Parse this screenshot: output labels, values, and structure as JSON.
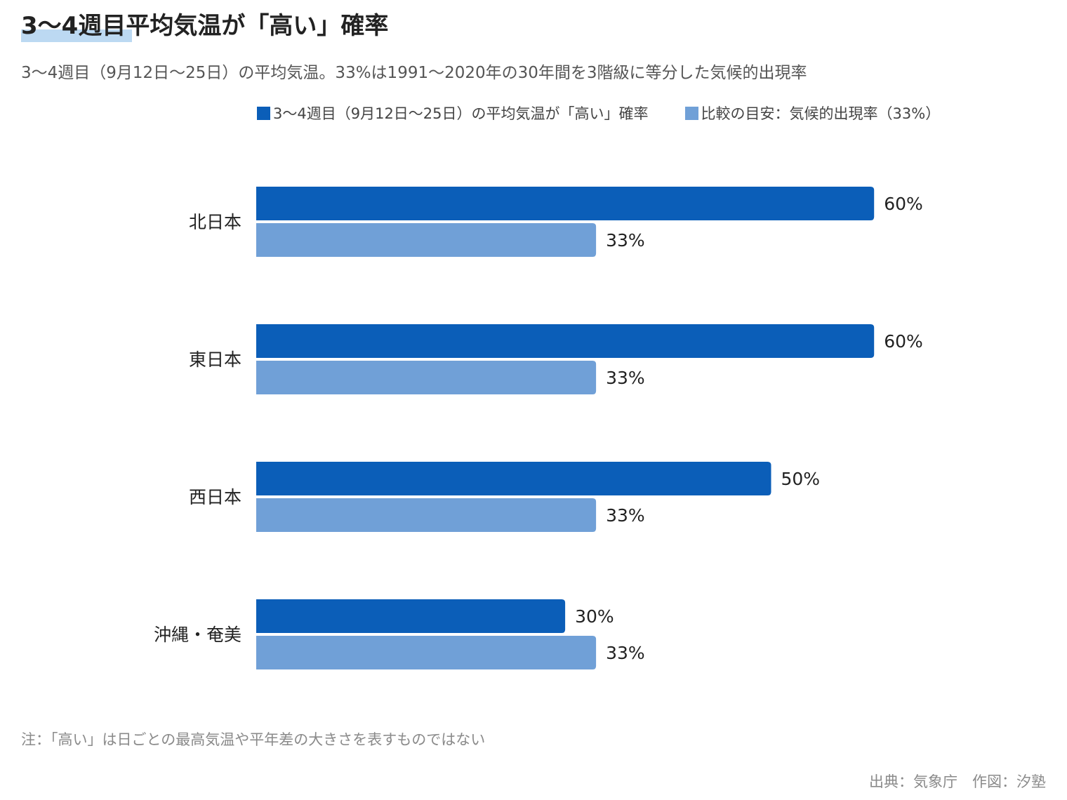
{
  "title": "3〜4週目平均気温が「高い」確率",
  "subtitle": "3〜4週目（9月12日〜25日）の平均気温。33%は1991〜2020年の30年間を3階級に等分した気候的出現率",
  "legend": [
    {
      "label": "3〜4週目（9月12日〜25日）の平均気温が「高い」確率",
      "color": "#0b5eb8"
    },
    {
      "label": "比較の目安：気候的出現率（33%）",
      "color": "#70a0d7"
    }
  ],
  "note": "注：「高い」は日ごとの最高気温や平年差の大きさを表すものではない",
  "source": "出典：気象庁　作図：汐塾",
  "chart_data": {
    "type": "bar",
    "orientation": "horizontal",
    "categories": [
      "北日本",
      "東日本",
      "西日本",
      "沖縄・奄美"
    ],
    "series": [
      {
        "name": "3〜4週目（9月12日〜25日）の平均気温が「高い」確率",
        "values": [
          60,
          60,
          50,
          30
        ],
        "color": "#0b5eb8"
      },
      {
        "name": "比較の目安：気候的出現率（33%）",
        "values": [
          33,
          33,
          33,
          33
        ],
        "color": "#70a0d7"
      }
    ],
    "value_suffix": "%",
    "xlim": [
      0,
      100
    ],
    "grid": false,
    "legend_position": "top"
  }
}
